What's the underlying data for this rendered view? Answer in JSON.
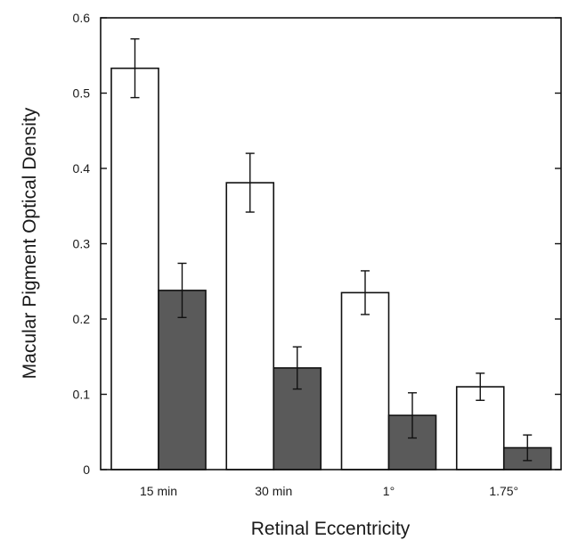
{
  "chart_data": {
    "type": "bar",
    "title": "",
    "xlabel": "Retinal Eccentricity",
    "ylabel": "Macular Pigment Optical Density",
    "categories": [
      "15 min",
      "30 min",
      "1°",
      "1.75°"
    ],
    "ylim": [
      0,
      0.6
    ],
    "yticks": [
      "0",
      "0.1",
      "0.2",
      "0.3",
      "0.4",
      "0.5",
      "0.6"
    ],
    "grid": false,
    "legend": "none",
    "series": [
      {
        "color": "#ffffff",
        "values": [
          0.533,
          0.381,
          0.235,
          0.11
        ],
        "error": [
          0.039,
          0.039,
          0.029,
          0.018
        ]
      },
      {
        "color": "#5a5a5a",
        "values": [
          0.238,
          0.135,
          0.072,
          0.029
        ],
        "error": [
          0.036,
          0.028,
          0.03,
          0.017
        ]
      }
    ]
  }
}
